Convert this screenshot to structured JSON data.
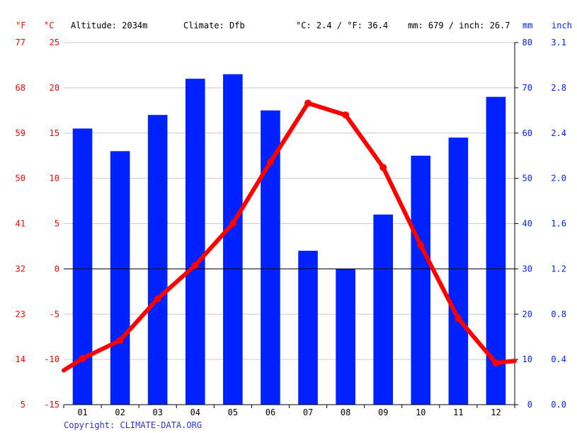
{
  "header": {
    "unit_f": "°F",
    "unit_c": "°C",
    "altitude": "Altitude: 2034m",
    "climate": "Climate: Dfb",
    "temp_summary": "°C: 2.4 / °F: 36.4",
    "precip_summary": "mm: 679 / inch: 26.7",
    "unit_mm": "mm",
    "unit_inch": "inch"
  },
  "copyright": "Copyright: CLIMATE-DATA.ORG",
  "colors": {
    "temperature": "#ff0000",
    "precipitation": "#0022ff",
    "grid": "#cccccc",
    "zero_line": "#000000",
    "footer": "#3333cc"
  },
  "chart_data": {
    "type": "bar",
    "categories": [
      "01",
      "02",
      "03",
      "04",
      "05",
      "06",
      "07",
      "08",
      "09",
      "10",
      "11",
      "12"
    ],
    "series": [
      {
        "type": "bar",
        "axis": "right-mm",
        "values": [
          61,
          56,
          64,
          72,
          73,
          65,
          34,
          30,
          42,
          55,
          59,
          68
        ]
      },
      {
        "type": "line",
        "axis": "left-celsius",
        "values": [
          -9.9,
          -7.9,
          -3.3,
          0.4,
          5.0,
          11.8,
          18.3,
          17.0,
          11.2,
          2.6,
          -5.5,
          -10.4
        ]
      }
    ],
    "y_left_celsius": {
      "ylim": [
        -15,
        25
      ],
      "ticks": [
        "-15",
        "-10",
        "-5",
        "0",
        "5",
        "10",
        "15",
        "20",
        "25"
      ]
    },
    "y_left_fahrenheit": {
      "ticks": [
        "5",
        "14",
        "23",
        "32",
        "41",
        "50",
        "59",
        "68",
        "77"
      ]
    },
    "y_right_mm": {
      "ylim": [
        0,
        80
      ],
      "ticks": [
        "0",
        "10",
        "20",
        "30",
        "40",
        "50",
        "60",
        "70",
        "80"
      ]
    },
    "y_right_inch": {
      "ticks": [
        "0.0",
        "0.4",
        "0.8",
        "1.2",
        "1.6",
        "2.0",
        "2.4",
        "2.8",
        "3.1"
      ]
    },
    "grid": true
  }
}
